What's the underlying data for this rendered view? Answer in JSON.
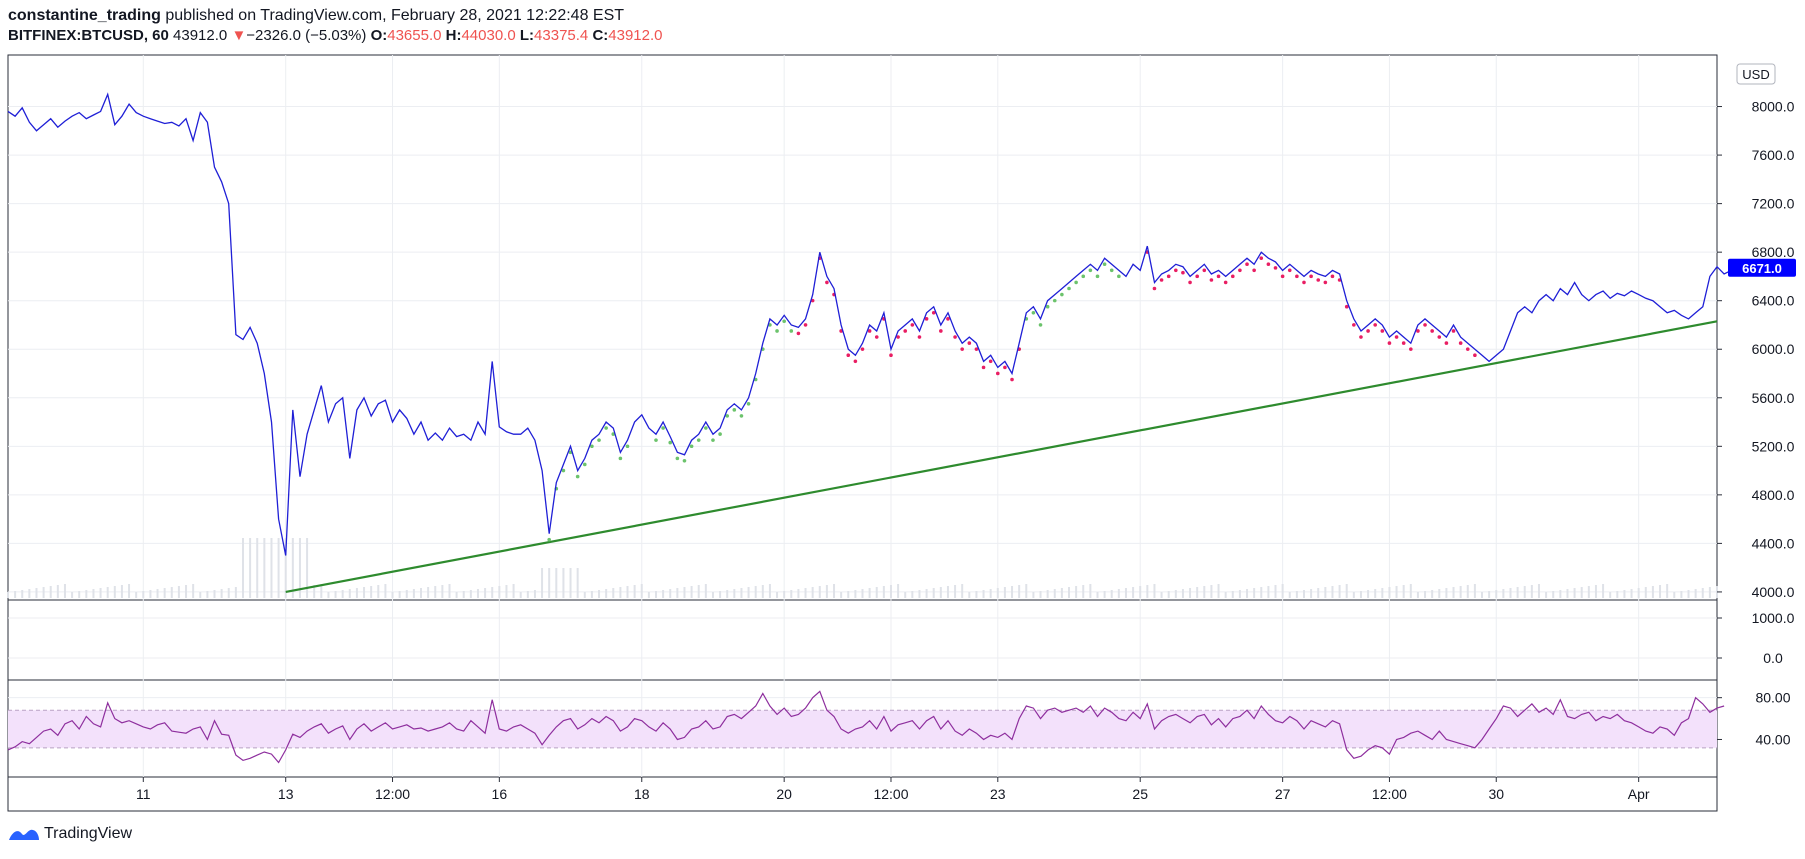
{
  "header": {
    "author": "constantine_trading",
    "published_text": "published on TradingView.com, February 28, 2021 12:22:48 EST",
    "symbol": "BITFINEX:BTCUSD, 60",
    "last_price": "43912.0",
    "change_arrow": "▼",
    "change": "−2326.0 (−5.03%)",
    "open_label": "O:",
    "open": "43655.0",
    "high_label": "H:",
    "high": "44030.0",
    "low_label": "L:",
    "low": "43375.4",
    "close_label": "C:",
    "close": "43912.0"
  },
  "footer": {
    "brand": "TradingView",
    "logo_icon": "tradingview-logo-icon"
  },
  "colors": {
    "price": "#1f1fd6",
    "trend": "#2e8b2e",
    "rsi": "#8e2f9e",
    "rsi_band": "#f3e1fb",
    "buy_dots": "#6cc36c",
    "sell_dots": "#e91e63",
    "badge": "#0000ff"
  },
  "chart_data": [
    {
      "type": "line",
      "panel": "price",
      "currency_label": "USD",
      "last_value_label": "6671.0",
      "ylim": [
        3950,
        8400
      ],
      "yticks": [
        "8000.0",
        "7600.0",
        "7200.0",
        "6800.0",
        "6400.0",
        "6000.0",
        "5600.0",
        "5200.0",
        "4800.0",
        "4400.0",
        "4000.0"
      ],
      "ytick_values": [
        8000,
        7600,
        7200,
        6800,
        6400,
        6000,
        5600,
        5200,
        4800,
        4400,
        4000
      ],
      "x_index_range": [
        0,
        240
      ],
      "xticks": [
        {
          "i": 19,
          "label": "11"
        },
        {
          "i": 39,
          "label": "13"
        },
        {
          "i": 54,
          "label": "12:00"
        },
        {
          "i": 69,
          "label": "16"
        },
        {
          "i": 89,
          "label": "18"
        },
        {
          "i": 109,
          "label": "20"
        },
        {
          "i": 124,
          "label": "12:00"
        },
        {
          "i": 139,
          "label": "23"
        },
        {
          "i": 159,
          "label": "25"
        },
        {
          "i": 179,
          "label": "27"
        },
        {
          "i": 194,
          "label": "12:00"
        },
        {
          "i": 209,
          "label": "30"
        },
        {
          "i": 229,
          "label": "Apr"
        }
      ],
      "series": [
        {
          "values": [
            7960,
            7920,
            7990,
            7870,
            7800,
            7850,
            7900,
            7830,
            7880,
            7920,
            7950,
            7900,
            7930,
            7960,
            8100,
            7850,
            7920,
            8020,
            7950,
            7920,
            7900,
            7880,
            7860,
            7870,
            7840,
            7900,
            7720,
            7950,
            7870,
            7500,
            7380,
            7200,
            6120,
            6080,
            6180,
            6050,
            5800,
            5400,
            4600,
            4300,
            5500,
            4950,
            5300,
            5500,
            5700,
            5400,
            5550,
            5600,
            5100,
            5500,
            5600,
            5450,
            5550,
            5580,
            5400,
            5500,
            5430,
            5300,
            5400,
            5250,
            5310,
            5250,
            5350,
            5280,
            5300,
            5250,
            5400,
            5300,
            5900,
            5360,
            5320,
            5300,
            5300,
            5350,
            5250,
            5000,
            4480,
            4900,
            5050,
            5200,
            5000,
            5100,
            5250,
            5300,
            5400,
            5350,
            5150,
            5250,
            5400,
            5460,
            5350,
            5300,
            5400,
            5280,
            5150,
            5130,
            5250,
            5300,
            5400,
            5300,
            5350,
            5500,
            5550,
            5500,
            5600,
            5800,
            6050,
            6250,
            6200,
            6280,
            6200,
            6180,
            6250,
            6450,
            6800,
            6600,
            6500,
            6200,
            6000,
            5950,
            6050,
            6200,
            6150,
            6300,
            6000,
            6150,
            6200,
            6250,
            6150,
            6300,
            6350,
            6200,
            6300,
            6150,
            6050,
            6100,
            6050,
            5900,
            5950,
            5850,
            5900,
            5800,
            6050,
            6300,
            6350,
            6250,
            6400,
            6450,
            6500,
            6550,
            6600,
            6650,
            6700,
            6650,
            6750,
            6700,
            6650,
            6600,
            6700,
            6650,
            6850,
            6550,
            6620,
            6650,
            6700,
            6680,
            6600,
            6650,
            6700,
            6620,
            6650,
            6600,
            6650,
            6700,
            6750,
            6700,
            6800,
            6750,
            6720,
            6650,
            6700,
            6650,
            6600,
            6650,
            6620,
            6600,
            6650,
            6620,
            6400,
            6250,
            6150,
            6200,
            6250,
            6200,
            6100,
            6150,
            6100,
            6050,
            6200,
            6250,
            6200,
            6150,
            6100,
            6200,
            6100,
            6050,
            6000,
            5950,
            5900,
            5950,
            6000,
            6150,
            6300,
            6350,
            6300,
            6400,
            6450,
            6400,
            6500,
            6450,
            6550,
            6450,
            6400,
            6450,
            6480,
            6420,
            6460,
            6440,
            6480,
            6450,
            6420,
            6400,
            6350,
            6300,
            6320,
            6280,
            6250,
            6300,
            6350,
            6600,
            6680,
            6620,
            6650,
            6700,
            6671
          ]
        }
      ],
      "trendline": {
        "from": {
          "i": 39,
          "value": 4000
        },
        "to": {
          "i": 240,
          "value": 6230
        }
      },
      "buy_dot_segments": [
        [
          76,
          87
        ],
        [
          91,
          110
        ],
        [
          142,
          156
        ]
      ],
      "sell_dot_segments": [
        [
          111,
          142
        ],
        [
          160,
          206
        ]
      ]
    },
    {
      "type": "line",
      "panel": "volume-delta",
      "ylim": [
        -500,
        1400
      ],
      "yticks": [
        "1000.0",
        "0.0"
      ],
      "ytick_values": [
        1000,
        0
      ]
    },
    {
      "type": "line",
      "panel": "rsi",
      "ylim": [
        6,
        95
      ],
      "yticks": [
        "80.00",
        "40.00"
      ],
      "ytick_values": [
        80,
        40
      ],
      "band": [
        32,
        68
      ],
      "series": [
        {
          "values": [
            30,
            33,
            38,
            36,
            42,
            48,
            50,
            44,
            55,
            58,
            50,
            62,
            55,
            52,
            75,
            60,
            56,
            58,
            55,
            52,
            50,
            54,
            56,
            48,
            47,
            46,
            50,
            52,
            40,
            58,
            45,
            44,
            25,
            20,
            22,
            25,
            28,
            26,
            18,
            30,
            45,
            42,
            48,
            52,
            55,
            46,
            50,
            53,
            40,
            50,
            55,
            48,
            52,
            56,
            50,
            52,
            54,
            50,
            51,
            48,
            50,
            52,
            56,
            50,
            48,
            58,
            52,
            46,
            78,
            50,
            48,
            52,
            54,
            50,
            46,
            35,
            44,
            52,
            58,
            60,
            50,
            54,
            60,
            56,
            62,
            58,
            48,
            52,
            60,
            58,
            52,
            48,
            56,
            50,
            40,
            42,
            50,
            52,
            58,
            50,
            52,
            62,
            64,
            60,
            66,
            72,
            84,
            72,
            64,
            70,
            62,
            64,
            70,
            80,
            86,
            68,
            62,
            50,
            46,
            50,
            52,
            58,
            50,
            62,
            48,
            54,
            56,
            58,
            50,
            58,
            62,
            50,
            58,
            48,
            44,
            50,
            46,
            40,
            44,
            42,
            46,
            40,
            60,
            72,
            70,
            60,
            68,
            70,
            66,
            68,
            70,
            66,
            72,
            62,
            70,
            66,
            60,
            58,
            66,
            60,
            74,
            50,
            58,
            62,
            64,
            60,
            56,
            62,
            64,
            54,
            60,
            52,
            60,
            62,
            68,
            60,
            72,
            64,
            58,
            56,
            62,
            58,
            50,
            58,
            55,
            52,
            58,
            55,
            30,
            22,
            24,
            30,
            34,
            32,
            26,
            40,
            42,
            46,
            48,
            44,
            40,
            48,
            40,
            38,
            36,
            34,
            32,
            40,
            50,
            60,
            72,
            70,
            62,
            68,
            74,
            66,
            70,
            64,
            78,
            62,
            60,
            64,
            66,
            58,
            62,
            60,
            64,
            58,
            56,
            52,
            48,
            46,
            52,
            50,
            44,
            56,
            60,
            80,
            74,
            66,
            70,
            72
          ]
        }
      ]
    }
  ]
}
